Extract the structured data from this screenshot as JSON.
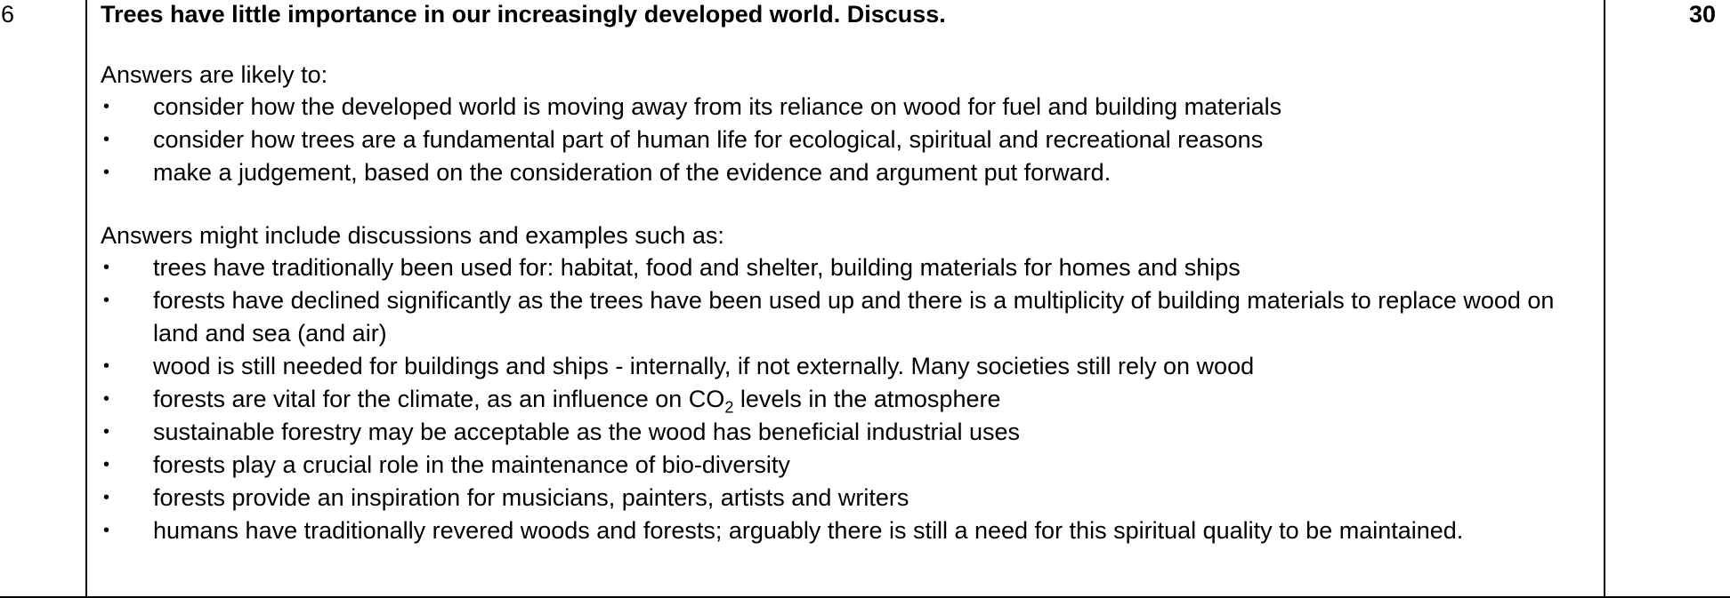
{
  "row": {
    "number": "6",
    "question": "Trees have little importance in our increasingly developed world. Discuss.",
    "marks": "30"
  },
  "section1": {
    "intro": "Answers are likely to:",
    "bullets": [
      "consider how the developed world is moving away from its reliance on wood for fuel and building materials",
      "consider how trees are a fundamental part of human life for ecological, spiritual and recreational reasons",
      "make a judgement, based on the consideration of the evidence and argument put forward."
    ]
  },
  "section2": {
    "intro": "Answers might include discussions and examples such as:",
    "bullets": [
      "trees have traditionally been used for: habitat, food and shelter, building materials for homes and ships",
      "forests have declined significantly as the trees have been used up and there is a multiplicity of building materials to replace wood on land and sea (and air)",
      "wood is still needed for buildings and ships - internally, if not externally. Many societies still rely on wood",
      {
        "before": "forests are vital for the climate, as an influence on CO",
        "sub": "2",
        "after": " levels in the atmosphere"
      },
      "sustainable forestry may be acceptable as the wood has beneficial industrial uses",
      "forests play a crucial role in the maintenance of bio-diversity",
      "forests provide an inspiration for musicians, painters, artists and writers",
      "humans have traditionally revered woods and forests; arguably there is still a need for this spiritual quality to be maintained."
    ]
  },
  "bullet_glyph": "•"
}
